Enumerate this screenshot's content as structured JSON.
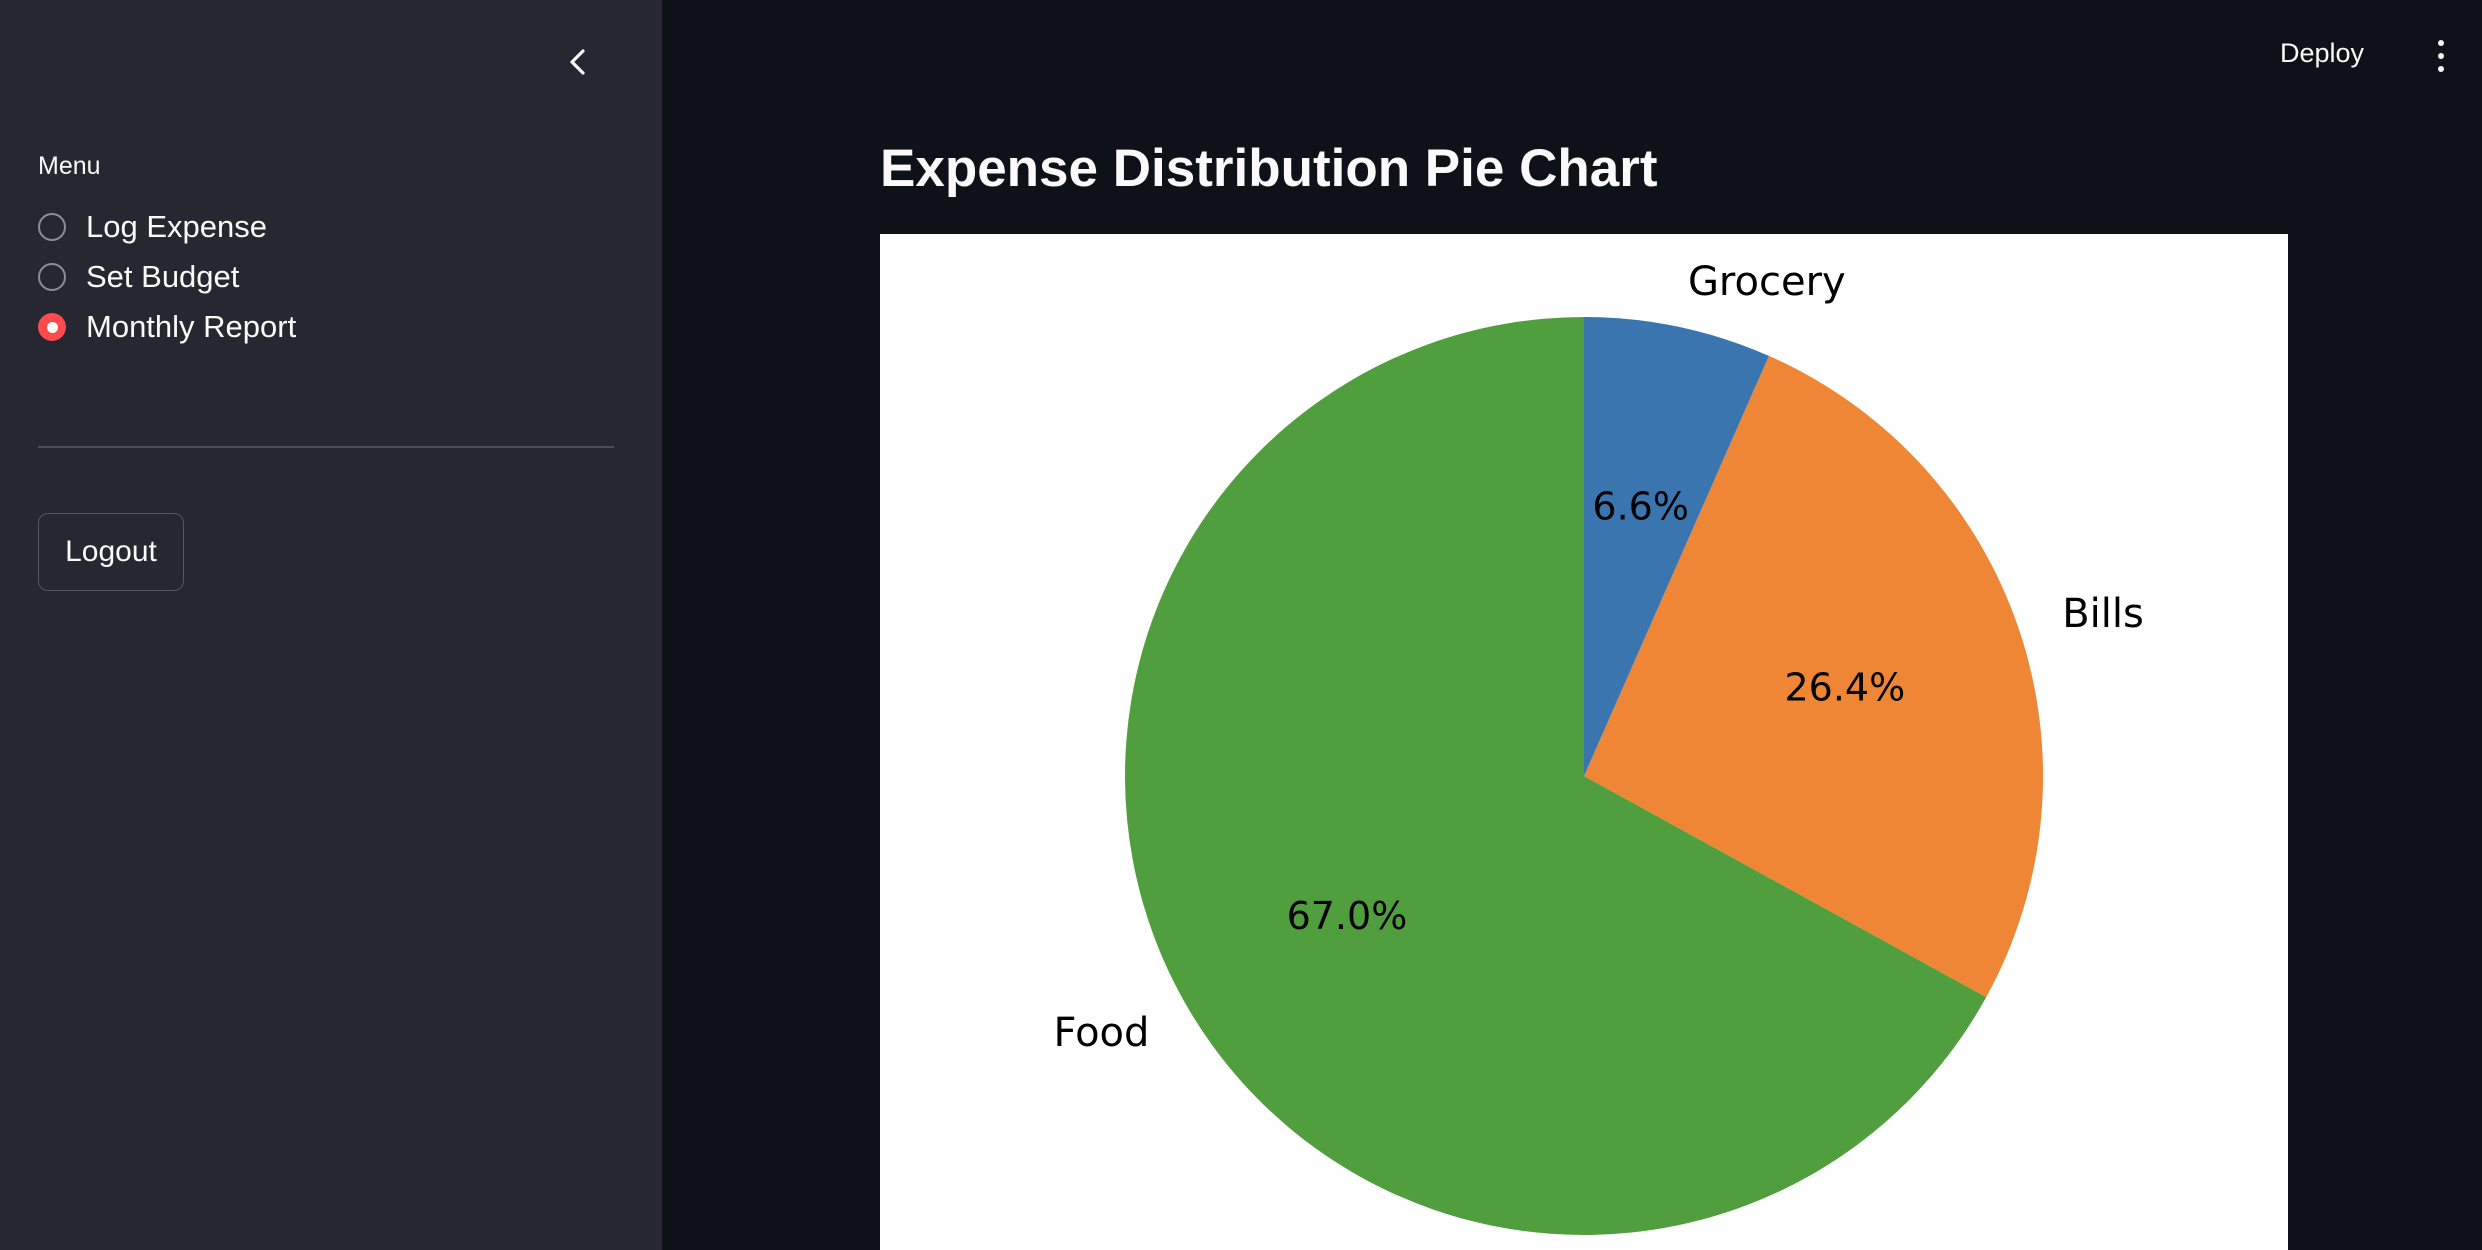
{
  "sidebar": {
    "menu_label": "Menu",
    "items": [
      {
        "label": "Log Expense",
        "selected": false
      },
      {
        "label": "Set Budget",
        "selected": false
      },
      {
        "label": "Monthly Report",
        "selected": true
      }
    ],
    "logout_label": "Logout",
    "accent_color": "#ff4b4b"
  },
  "header": {
    "deploy_label": "Deploy",
    "menu_icon": "kebab-menu-icon",
    "collapse_icon": "chevron-left-icon"
  },
  "main": {
    "title": "Expense Distribution Pie Chart"
  },
  "chart_data": {
    "type": "pie",
    "title": "",
    "slices": [
      {
        "label": "Food",
        "value": 67.0,
        "display": "67.0%",
        "color": "#519e3e"
      },
      {
        "label": "Bills",
        "value": 26.4,
        "display": "26.4%",
        "color": "#ef8636"
      },
      {
        "label": "Grocery",
        "value": 6.6,
        "display": "6.6%",
        "color": "#3b75af"
      }
    ],
    "start_angle_deg": 90,
    "direction": "counterclockwise",
    "legend": "none"
  }
}
